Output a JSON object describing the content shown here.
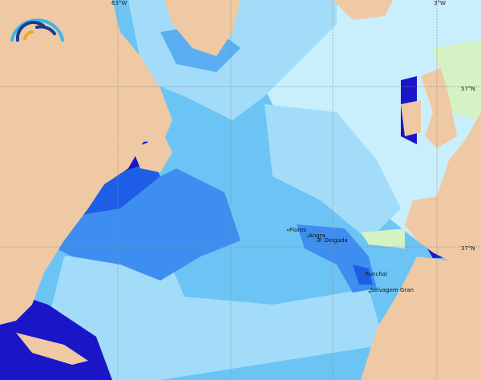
{
  "map": {
    "colors": {
      "land": "#efc9a3",
      "ocean_pale": "#c9eefc",
      "ocean_light": "#a3dcf9",
      "ocean_mid": "#6cc4f5",
      "ocean_blue": "#3d8ef0",
      "ocean_deep": "#1e5ee6",
      "ocean_darkest": "#1a16c8",
      "ocean_green": "#d4f2c4",
      "grid": "#8a8a8a"
    },
    "grid_labels": {
      "lon_left": "63°W",
      "lon_right": "3°W",
      "lat_top": "57°N",
      "lat_bottom": "37°N"
    },
    "places": [
      {
        "name": "Flores"
      },
      {
        "name": "Angra"
      },
      {
        "name": "P. Delgada"
      },
      {
        "name": "Funchal"
      },
      {
        "name": "Selvagem Gran"
      }
    ],
    "logo": "rainbow-arc-logo"
  }
}
